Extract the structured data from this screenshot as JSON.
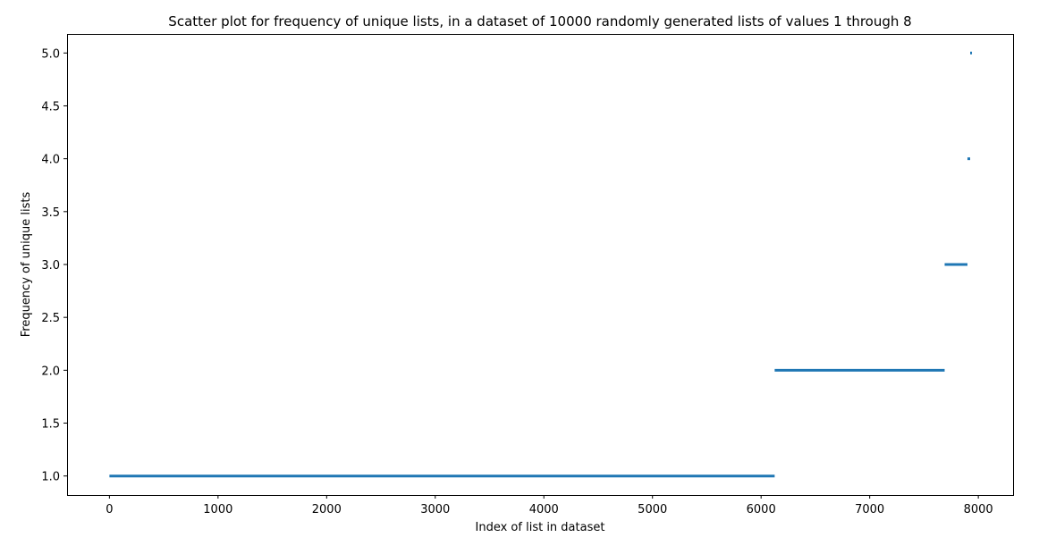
{
  "chart_data": {
    "type": "scatter",
    "title": "Scatter plot for frequency of unique lists, in a dataset of 10000 randomly generated lists of values 1 through 8",
    "xlabel": "Index of list in dataset",
    "ylabel": "Frequency of unique lists",
    "xlim": [
      -390,
      8320
    ],
    "ylim": [
      0.82,
      5.18
    ],
    "x_ticks": [
      0,
      1000,
      2000,
      3000,
      4000,
      5000,
      6000,
      7000,
      8000
    ],
    "x_tick_labels": [
      "0",
      "1000",
      "2000",
      "3000",
      "4000",
      "5000",
      "6000",
      "7000",
      "8000"
    ],
    "y_ticks": [
      1.0,
      1.5,
      2.0,
      2.5,
      3.0,
      3.5,
      4.0,
      4.5,
      5.0
    ],
    "y_tick_labels": [
      "1.0",
      "1.5",
      "2.0",
      "2.5",
      "3.0",
      "3.5",
      "4.0",
      "4.5",
      "5.0"
    ],
    "grid": false,
    "marker_color": "#1f77b4",
    "series": [
      {
        "segments": [
          {
            "y": 1,
            "x_start": 0,
            "x_end": 6125
          },
          {
            "y": 2,
            "x_start": 6125,
            "x_end": 7690
          },
          {
            "y": 3,
            "x_start": 7690,
            "x_end": 7900
          },
          {
            "y": 4,
            "x_start": 7900,
            "x_end": 7925
          },
          {
            "y": 5,
            "x_start": 7925,
            "x_end": 7935
          }
        ]
      }
    ]
  }
}
